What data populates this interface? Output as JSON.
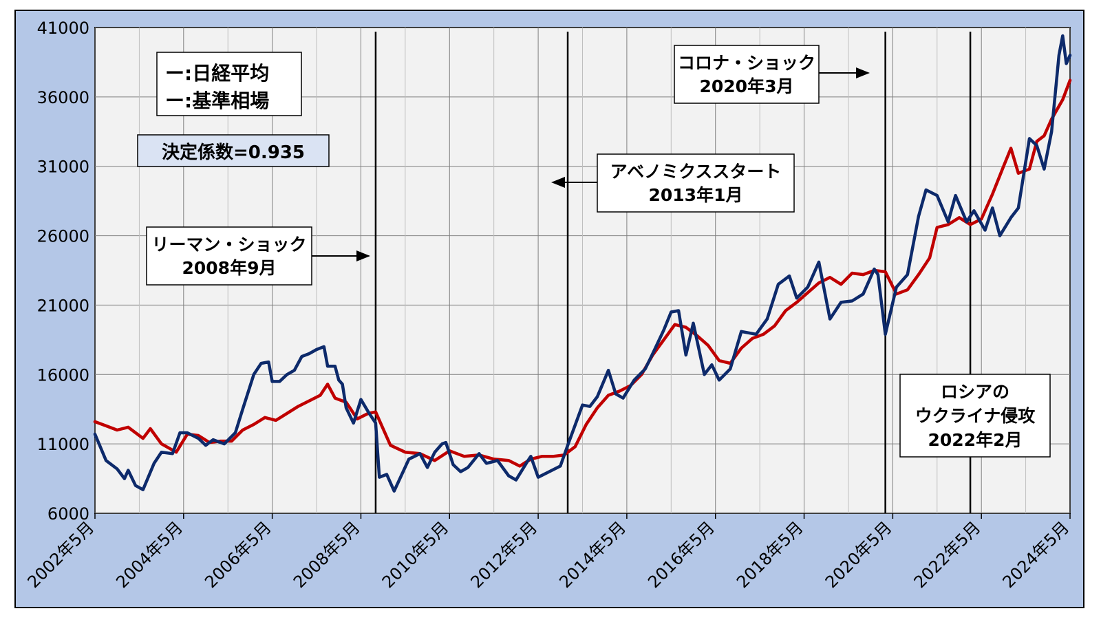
{
  "colors": {
    "outer_background": "#b4c7e7",
    "plot_background": "#f2f2f2",
    "nikkei": "#0d2a6b",
    "benchmark": "#c00000",
    "grid": "#7f7f7f",
    "event_line": "#000000"
  },
  "legend": {
    "nikkei": "ー:日経平均",
    "benchmark": "ー:基準相場"
  },
  "r2_label": "決定係数=0.935",
  "annotations": [
    {
      "line1": "リーマン・ショック",
      "line2": "2008年9月"
    },
    {
      "line1": "アベノミクススタート",
      "line2": "2013年1月"
    },
    {
      "line1": "コロナ・ショック",
      "line2": "2020年3月"
    },
    {
      "line1": "ロシアの",
      "line2": "ウクライナ侵攻",
      "line3": "2022年2月"
    }
  ],
  "chart_data": {
    "type": "line",
    "title": "",
    "xlabel": "",
    "ylabel": "",
    "ylim": [
      6000,
      41000
    ],
    "y_ticks": [
      "6000",
      "11000",
      "16000",
      "21000",
      "26000",
      "31000",
      "36000",
      "41000"
    ],
    "x_tick_labels": [
      "2002年5月",
      "2004年5月",
      "2006年5月",
      "2008年5月",
      "2010年5月",
      "2012年5月",
      "2014年5月",
      "2016年5月",
      "2018年5月",
      "2020年5月",
      "2022年5月",
      "2024年5月"
    ],
    "x_range": [
      "2002-05",
      "2024-05"
    ],
    "grid": true,
    "legend_position": "top-left",
    "event_lines": [
      "2008-09",
      "2013-01",
      "2020-03",
      "2022-02"
    ],
    "series": [
      {
        "name": "日経平均",
        "values": [
          [
            "2002-05",
            11700
          ],
          [
            "2002-08",
            9800
          ],
          [
            "2002-11",
            9200
          ],
          [
            "2003-01",
            8500
          ],
          [
            "2003-02",
            9100
          ],
          [
            "2003-04",
            8000
          ],
          [
            "2003-06",
            7700
          ],
          [
            "2003-09",
            9600
          ],
          [
            "2003-11",
            10400
          ],
          [
            "2004-02",
            10300
          ],
          [
            "2004-04",
            11800
          ],
          [
            "2004-06",
            11800
          ],
          [
            "2004-09",
            11400
          ],
          [
            "2004-11",
            10900
          ],
          [
            "2005-01",
            11300
          ],
          [
            "2005-04",
            11000
          ],
          [
            "2005-07",
            11800
          ],
          [
            "2005-09",
            13500
          ],
          [
            "2005-12",
            16000
          ],
          [
            "2006-02",
            16800
          ],
          [
            "2006-04",
            16900
          ],
          [
            "2006-05",
            15500
          ],
          [
            "2006-07",
            15500
          ],
          [
            "2006-09",
            16000
          ],
          [
            "2006-11",
            16300
          ],
          [
            "2007-01",
            17300
          ],
          [
            "2007-03",
            17500
          ],
          [
            "2007-05",
            17800
          ],
          [
            "2007-07",
            18000
          ],
          [
            "2007-08",
            16600
          ],
          [
            "2007-10",
            16600
          ],
          [
            "2007-11",
            15600
          ],
          [
            "2007-12",
            15300
          ],
          [
            "2008-01",
            13600
          ],
          [
            "2008-03",
            12500
          ],
          [
            "2008-05",
            14200
          ],
          [
            "2008-07",
            13300
          ],
          [
            "2008-09",
            12500
          ],
          [
            "2008-10",
            8600
          ],
          [
            "2008-12",
            8800
          ],
          [
            "2009-02",
            7600
          ],
          [
            "2009-06",
            9900
          ],
          [
            "2009-09",
            10300
          ],
          [
            "2009-11",
            9300
          ],
          [
            "2010-01",
            10400
          ],
          [
            "2010-03",
            11000
          ],
          [
            "2010-04",
            11100
          ],
          [
            "2010-06",
            9500
          ],
          [
            "2010-08",
            9000
          ],
          [
            "2010-10",
            9300
          ],
          [
            "2011-01",
            10300
          ],
          [
            "2011-03",
            9600
          ],
          [
            "2011-06",
            9800
          ],
          [
            "2011-09",
            8700
          ],
          [
            "2011-11",
            8400
          ],
          [
            "2012-02",
            9700
          ],
          [
            "2012-03",
            10100
          ],
          [
            "2012-05",
            8600
          ],
          [
            "2012-08",
            9000
          ],
          [
            "2012-11",
            9400
          ],
          [
            "2013-01",
            10900
          ],
          [
            "2013-05",
            13800
          ],
          [
            "2013-07",
            13700
          ],
          [
            "2013-09",
            14400
          ],
          [
            "2013-12",
            16300
          ],
          [
            "2014-02",
            14600
          ],
          [
            "2014-04",
            14300
          ],
          [
            "2014-07",
            15600
          ],
          [
            "2014-10",
            16400
          ],
          [
            "2014-12",
            17500
          ],
          [
            "2015-03",
            19200
          ],
          [
            "2015-05",
            20500
          ],
          [
            "2015-07",
            20600
          ],
          [
            "2015-09",
            17400
          ],
          [
            "2015-11",
            19700
          ],
          [
            "2016-02",
            16000
          ],
          [
            "2016-04",
            16700
          ],
          [
            "2016-06",
            15600
          ],
          [
            "2016-09",
            16400
          ],
          [
            "2016-12",
            19100
          ],
          [
            "2017-04",
            18900
          ],
          [
            "2017-07",
            20000
          ],
          [
            "2017-10",
            22500
          ],
          [
            "2018-01",
            23100
          ],
          [
            "2018-03",
            21500
          ],
          [
            "2018-06",
            22300
          ],
          [
            "2018-09",
            24100
          ],
          [
            "2018-12",
            20000
          ],
          [
            "2019-03",
            21200
          ],
          [
            "2019-06",
            21300
          ],
          [
            "2019-09",
            21800
          ],
          [
            "2019-12",
            23600
          ],
          [
            "2020-01",
            23200
          ],
          [
            "2020-03",
            18900
          ],
          [
            "2020-06",
            22300
          ],
          [
            "2020-09",
            23200
          ],
          [
            "2020-12",
            27400
          ],
          [
            "2021-02",
            29300
          ],
          [
            "2021-05",
            28900
          ],
          [
            "2021-08",
            27000
          ],
          [
            "2021-10",
            28900
          ],
          [
            "2022-01",
            27000
          ],
          [
            "2022-03",
            27800
          ],
          [
            "2022-06",
            26400
          ],
          [
            "2022-08",
            28000
          ],
          [
            "2022-10",
            26000
          ],
          [
            "2023-01",
            27300
          ],
          [
            "2023-03",
            28000
          ],
          [
            "2023-06",
            33000
          ],
          [
            "2023-08",
            32500
          ],
          [
            "2023-10",
            30800
          ],
          [
            "2023-12",
            33500
          ],
          [
            "2024-02",
            39000
          ],
          [
            "2024-03",
            40400
          ],
          [
            "2024-04",
            38400
          ],
          [
            "2024-05",
            39000
          ]
        ]
      },
      {
        "name": "基準相場",
        "values": [
          [
            "2002-05",
            12600
          ],
          [
            "2002-08",
            12300
          ],
          [
            "2002-11",
            12000
          ],
          [
            "2003-02",
            12200
          ],
          [
            "2003-06",
            11400
          ],
          [
            "2003-08",
            12100
          ],
          [
            "2003-11",
            11000
          ],
          [
            "2004-03",
            10400
          ],
          [
            "2004-06",
            11700
          ],
          [
            "2004-09",
            11600
          ],
          [
            "2004-12",
            11100
          ],
          [
            "2005-03",
            11200
          ],
          [
            "2005-06",
            11200
          ],
          [
            "2005-09",
            12000
          ],
          [
            "2005-12",
            12400
          ],
          [
            "2006-03",
            12900
          ],
          [
            "2006-06",
            12700
          ],
          [
            "2006-09",
            13200
          ],
          [
            "2006-12",
            13700
          ],
          [
            "2007-03",
            14100
          ],
          [
            "2007-06",
            14500
          ],
          [
            "2007-08",
            15300
          ],
          [
            "2007-10",
            14300
          ],
          [
            "2008-01",
            14000
          ],
          [
            "2008-04",
            12800
          ],
          [
            "2008-07",
            13200
          ],
          [
            "2008-09",
            13300
          ],
          [
            "2009-01",
            10900
          ],
          [
            "2009-05",
            10400
          ],
          [
            "2009-09",
            10300
          ],
          [
            "2010-01",
            9800
          ],
          [
            "2010-05",
            10500
          ],
          [
            "2010-09",
            10100
          ],
          [
            "2011-01",
            10200
          ],
          [
            "2011-05",
            9900
          ],
          [
            "2011-09",
            9800
          ],
          [
            "2011-12",
            9400
          ],
          [
            "2012-03",
            9900
          ],
          [
            "2012-06",
            10100
          ],
          [
            "2012-09",
            10100
          ],
          [
            "2012-12",
            10200
          ],
          [
            "2013-03",
            10800
          ],
          [
            "2013-06",
            12400
          ],
          [
            "2013-09",
            13600
          ],
          [
            "2013-12",
            14500
          ],
          [
            "2014-03",
            14800
          ],
          [
            "2014-06",
            15200
          ],
          [
            "2014-09",
            16000
          ],
          [
            "2014-12",
            17400
          ],
          [
            "2015-03",
            18500
          ],
          [
            "2015-06",
            19600
          ],
          [
            "2015-09",
            19400
          ],
          [
            "2015-12",
            18800
          ],
          [
            "2016-03",
            18100
          ],
          [
            "2016-06",
            17000
          ],
          [
            "2016-09",
            16800
          ],
          [
            "2016-12",
            17900
          ],
          [
            "2017-03",
            18600
          ],
          [
            "2017-06",
            18900
          ],
          [
            "2017-09",
            19500
          ],
          [
            "2017-12",
            20600
          ],
          [
            "2018-03",
            21200
          ],
          [
            "2018-06",
            21900
          ],
          [
            "2018-09",
            22600
          ],
          [
            "2018-12",
            23000
          ],
          [
            "2019-03",
            22500
          ],
          [
            "2019-06",
            23300
          ],
          [
            "2019-09",
            23200
          ],
          [
            "2019-12",
            23500
          ],
          [
            "2020-03",
            23400
          ],
          [
            "2020-06",
            21800
          ],
          [
            "2020-09",
            22100
          ],
          [
            "2020-12",
            23200
          ],
          [
            "2021-03",
            24400
          ],
          [
            "2021-05",
            26600
          ],
          [
            "2021-08",
            26800
          ],
          [
            "2021-11",
            27300
          ],
          [
            "2022-02",
            26800
          ],
          [
            "2022-05",
            27200
          ],
          [
            "2022-08",
            29000
          ],
          [
            "2022-11",
            31000
          ],
          [
            "2023-01",
            32300
          ],
          [
            "2023-03",
            30500
          ],
          [
            "2023-06",
            30800
          ],
          [
            "2023-08",
            32800
          ],
          [
            "2023-10",
            33200
          ],
          [
            "2023-12",
            34400
          ],
          [
            "2024-03",
            35800
          ],
          [
            "2024-05",
            37200
          ]
        ]
      }
    ]
  }
}
